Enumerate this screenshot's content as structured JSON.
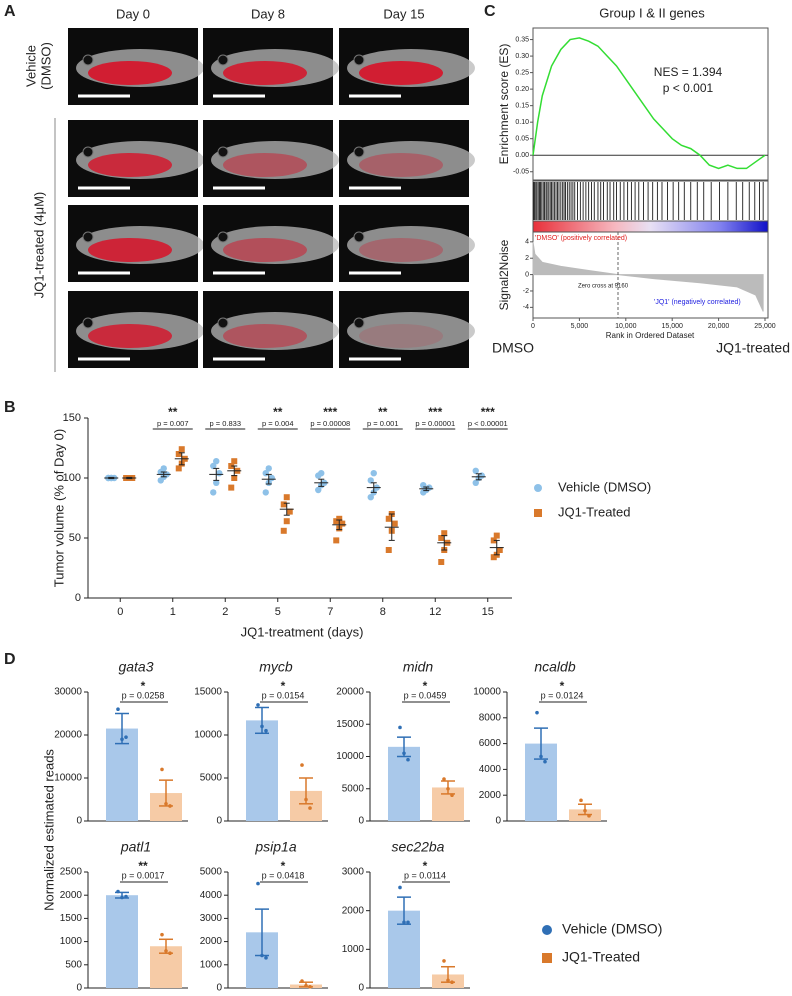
{
  "panel_labels": [
    "A",
    "B",
    "C",
    "D"
  ],
  "panel_a": {
    "columns": [
      "Day 0",
      "Day 8",
      "Day 15"
    ],
    "row_labels": [
      [
        "Vehicle",
        "(DMSO)"
      ],
      [
        "JQ1-treated (4μM)"
      ]
    ]
  },
  "panel_d": {
    "ylabel": "Normalized estimated reads",
    "legend": [
      {
        "name": "Vehicle (DMSO)",
        "color": "#2f6fb5"
      },
      {
        "name": "JQ1-Treated",
        "color": "#d9792b"
      }
    ]
  },
  "chart_data": [
    {
      "type": "line",
      "title": "Group I & II genes",
      "ylabel": "Enrichment score (ES)",
      "color": "#33dd33",
      "annotations": [
        "NES = 1.394",
        "p < 0.001"
      ],
      "xlim": [
        0,
        25000
      ],
      "ylim": [
        -0.075,
        0.385
      ],
      "yticks": [
        0.35,
        {
          "value": 0.3,
          "label": "0.30"
        },
        0.25,
        {
          "value": 0.2,
          "label": "0.20"
        },
        0.15,
        {
          "value": 0.1,
          "label": "0.10"
        },
        0.05,
        {
          "value": 0,
          "label": "0.00"
        },
        -0.05
      ],
      "x": [
        0,
        500,
        1000,
        2000,
        3000,
        4000,
        5000,
        6000,
        7000,
        8000,
        9000,
        10000,
        11000,
        12000,
        13000,
        14000,
        15000,
        16000,
        17000,
        18000,
        19000,
        20000,
        21000,
        22000,
        23000,
        24000,
        25000
      ],
      "values": [
        0,
        0.1,
        0.18,
        0.27,
        0.32,
        0.35,
        0.355,
        0.345,
        0.33,
        0.3,
        0.27,
        0.23,
        0.19,
        0.15,
        0.11,
        0.08,
        0.05,
        0.03,
        0.02,
        0,
        -0.03,
        -0.04,
        -0.03,
        -0.04,
        -0.04,
        -0.02,
        0
      ],
      "hits": [
        50,
        150,
        300,
        420,
        560,
        700,
        820,
        950,
        1100,
        1250,
        1400,
        1520,
        1700,
        1850,
        2000,
        2150,
        2300,
        2480,
        2650,
        2800,
        3000,
        3200,
        3350,
        3500,
        3700,
        3900,
        4100,
        4300,
        4500,
        4800,
        5100,
        5400,
        5700,
        6000,
        6300,
        6600,
        7000,
        7300,
        7600,
        8000,
        8300,
        8700,
        9000,
        9400,
        9800,
        10200,
        10600,
        11000,
        11400,
        11900,
        12400,
        12900,
        13400,
        13900,
        14500,
        15100,
        15700,
        16300,
        17000,
        17700,
        18400,
        19200,
        20100,
        21000,
        21900,
        22600,
        23300,
        23900,
        24400,
        24800
      ]
    },
    {
      "type": "area",
      "ylabel": "Signal2Noise",
      "xlabel": "Rank in Ordered Dataset",
      "color": "#bbbbbb",
      "annotations": [
        "'DMSO' (positively correlated)",
        "Zero cross at 9160",
        "'JQ1' (negatively correlated)"
      ],
      "zero_cross": 9160,
      "end_labels": [
        "DMSO",
        "JQ1-treated"
      ],
      "xlim": [
        0,
        25000
      ],
      "ylim": [
        -5.3,
        5.2
      ],
      "yticks": [
        4,
        2,
        0,
        -2,
        -4
      ],
      "xticks": [
        0,
        {
          "value": 5000,
          "label": "5,000"
        },
        {
          "value": 10000,
          "label": "10,000"
        },
        {
          "value": 15000,
          "label": "15,000"
        },
        {
          "value": 20000,
          "label": "20,000"
        },
        {
          "value": 25000,
          "label": "25,000"
        }
      ],
      "x": [
        0,
        200,
        1000,
        3000,
        6000,
        9160,
        13000,
        18000,
        22000,
        24000,
        24800
      ],
      "values": [
        4,
        2.5,
        1.5,
        1,
        0.5,
        0,
        -0.5,
        -1,
        -1.5,
        -2.5,
        -4.5
      ]
    },
    {
      "type": "dot",
      "ylabel": "Tumor volume (% of Day 0)",
      "xlabel": "JQ1-treatment (days)",
      "categories": [
        "0",
        "1",
        "2",
        "5",
        "7",
        "8",
        "12",
        "15"
      ],
      "ylim": [
        0,
        150
      ],
      "yticks": [
        0,
        50,
        100,
        150
      ],
      "significance": [
        null,
        {
          "stars": "**",
          "p": "p = 0.007"
        },
        {
          "p": "p = 0.833"
        },
        {
          "stars": "**",
          "p": "p = 0.004"
        },
        {
          "stars": "***",
          "p": "p = 0.00008"
        },
        {
          "stars": "**",
          "p": "p = 0.001"
        },
        {
          "stars": "***",
          "p": "p = 0.00001"
        },
        {
          "stars": "***",
          "p": "p < 0.00001"
        }
      ],
      "series": [
        {
          "name": "Vehicle (DMSO)",
          "color": "#8ec1e8",
          "marker": "circle",
          "means": [
            100,
            103,
            103,
            99,
            96,
            92,
            91,
            101
          ],
          "errors": [
            0.5,
            2,
            5,
            4,
            3,
            4,
            1.5,
            2.5
          ],
          "values": [
            [
              100,
              100,
              100,
              100,
              100
            ],
            [
              98,
              101,
              103,
              105,
              108
            ],
            [
              88,
              96,
              104,
              110,
              114
            ],
            [
              88,
              96,
              100,
              104,
              108
            ],
            [
              90,
              94,
              96,
              102,
              104
            ],
            [
              84,
              88,
              92,
              98,
              104
            ],
            [
              88,
              90,
              92,
              94
            ],
            [
              96,
              100,
              102,
              106
            ]
          ]
        },
        {
          "name": "JQ1-Treated",
          "color": "#d9792b",
          "marker": "square",
          "means": [
            100,
            116,
            106,
            74,
            61,
            59,
            46,
            42
          ],
          "errors": [
            0.5,
            5,
            4,
            5,
            4,
            11,
            6,
            6
          ],
          "values": [
            [
              100,
              100,
              100,
              100,
              100
            ],
            [
              108,
              112,
              116,
              120,
              124
            ],
            [
              92,
              100,
              106,
              110,
              114
            ],
            [
              56,
              64,
              72,
              78,
              84
            ],
            [
              48,
              58,
              62,
              64,
              66
            ],
            [
              40,
              56,
              62,
              66,
              70
            ],
            [
              30,
              40,
              46,
              50,
              54
            ],
            [
              34,
              36,
              40,
              48,
              52
            ]
          ]
        }
      ]
    },
    {
      "type": "bar",
      "title": "gata3",
      "stars": "*",
      "p": "p = 0.0258",
      "ylim": [
        0,
        30000
      ],
      "yticks": [
        0,
        10000,
        20000,
        30000
      ],
      "series": [
        {
          "color": "#a9c8ea",
          "edge_color": "#2f6fb5",
          "mean": 21500,
          "error": 3500,
          "points": [
            26000,
            19000,
            19500
          ]
        },
        {
          "color": "#f6cba6",
          "edge_color": "#d9792b",
          "mean": 6500,
          "error": 3000,
          "points": [
            12000,
            4000,
            3500
          ]
        }
      ]
    },
    {
      "type": "bar",
      "title": "mycb",
      "stars": "*",
      "p": "p = 0.0154",
      "ylim": [
        0,
        15000
      ],
      "yticks": [
        0,
        5000,
        10000,
        15000
      ],
      "series": [
        {
          "color": "#a9c8ea",
          "edge_color": "#2f6fb5",
          "mean": 11700,
          "error": 1500,
          "points": [
            13500,
            11000,
            10500
          ]
        },
        {
          "color": "#f6cba6",
          "edge_color": "#d9792b",
          "mean": 3500,
          "error": 1500,
          "points": [
            6500,
            2500,
            1500
          ]
        }
      ]
    },
    {
      "type": "bar",
      "title": "midn",
      "stars": "*",
      "p": "p = 0.0459",
      "ylim": [
        0,
        20000
      ],
      "yticks": [
        0,
        5000,
        10000,
        15000,
        20000
      ],
      "series": [
        {
          "color": "#a9c8ea",
          "edge_color": "#2f6fb5",
          "mean": 11500,
          "error": 1500,
          "points": [
            14500,
            10500,
            9500
          ]
        },
        {
          "color": "#f6cba6",
          "edge_color": "#d9792b",
          "mean": 5200,
          "error": 1000,
          "points": [
            6500,
            5000,
            4000
          ]
        }
      ]
    },
    {
      "type": "bar",
      "title": "ncaldb",
      "stars": "*",
      "p": "p = 0.0124",
      "ylim": [
        0,
        10000
      ],
      "yticks": [
        0,
        2000,
        4000,
        6000,
        8000,
        10000
      ],
      "series": [
        {
          "color": "#a9c8ea",
          "edge_color": "#2f6fb5",
          "mean": 6000,
          "error": 1200,
          "points": [
            8400,
            5000,
            4600
          ]
        },
        {
          "color": "#f6cba6",
          "edge_color": "#d9792b",
          "mean": 900,
          "error": 400,
          "points": [
            1600,
            800,
            400
          ]
        }
      ]
    },
    {
      "type": "bar",
      "title": "patl1",
      "stars": "**",
      "p": "p = 0.0017",
      "ylim": [
        0,
        2500
      ],
      "yticks": [
        0,
        500,
        1000,
        1500,
        2000,
        2500
      ],
      "series": [
        {
          "color": "#a9c8ea",
          "edge_color": "#2f6fb5",
          "mean": 2000,
          "error": 60,
          "points": [
            2080,
            1950,
            1970
          ]
        },
        {
          "color": "#f6cba6",
          "edge_color": "#d9792b",
          "mean": 900,
          "error": 150,
          "points": [
            1150,
            800,
            750
          ]
        }
      ]
    },
    {
      "type": "bar",
      "title": "psip1a",
      "stars": "*",
      "p": "p = 0.0418",
      "ylim": [
        0,
        5000
      ],
      "yticks": [
        0,
        1000,
        2000,
        3000,
        4000,
        5000
      ],
      "series": [
        {
          "color": "#a9c8ea",
          "edge_color": "#2f6fb5",
          "mean": 2400,
          "error": 1000,
          "points": [
            4500,
            1400,
            1300
          ]
        },
        {
          "color": "#f6cba6",
          "edge_color": "#d9792b",
          "mean": 150,
          "error": 100,
          "points": [
            300,
            100,
            50
          ]
        }
      ]
    },
    {
      "type": "bar",
      "title": "sec22ba",
      "stars": "*",
      "p": "p = 0.0114",
      "ylim": [
        0,
        3000
      ],
      "yticks": [
        0,
        1000,
        2000,
        3000
      ],
      "series": [
        {
          "color": "#a9c8ea",
          "edge_color": "#2f6fb5",
          "mean": 2000,
          "error": 350,
          "points": [
            2600,
            1700,
            1700
          ]
        },
        {
          "color": "#f6cba6",
          "edge_color": "#d9792b",
          "mean": 350,
          "error": 200,
          "points": [
            700,
            200,
            150
          ]
        }
      ]
    }
  ]
}
